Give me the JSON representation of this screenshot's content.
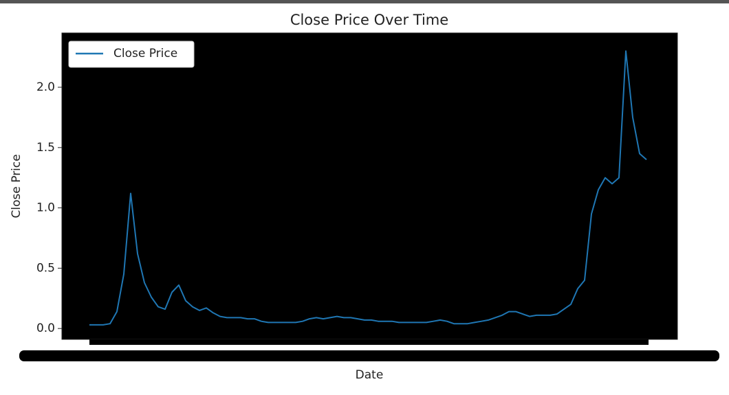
{
  "chart_data": {
    "type": "line",
    "title": "Close Price Over Time",
    "x_label": "Date",
    "y_label": "Close Price",
    "series": [
      {
        "name": "Close Price",
        "color": "#1f77b4",
        "values": [
          0.03,
          0.03,
          0.03,
          0.04,
          0.14,
          0.45,
          1.12,
          0.62,
          0.38,
          0.26,
          0.18,
          0.16,
          0.3,
          0.36,
          0.23,
          0.18,
          0.15,
          0.17,
          0.13,
          0.1,
          0.09,
          0.09,
          0.09,
          0.08,
          0.08,
          0.06,
          0.05,
          0.05,
          0.05,
          0.05,
          0.05,
          0.06,
          0.08,
          0.09,
          0.08,
          0.09,
          0.1,
          0.09,
          0.09,
          0.08,
          0.07,
          0.07,
          0.06,
          0.06,
          0.06,
          0.05,
          0.05,
          0.05,
          0.05,
          0.05,
          0.06,
          0.07,
          0.06,
          0.04,
          0.04,
          0.04,
          0.05,
          0.06,
          0.07,
          0.09,
          0.11,
          0.14,
          0.14,
          0.12,
          0.1,
          0.11,
          0.11,
          0.11,
          0.12,
          0.16,
          0.2,
          0.33,
          0.4,
          0.95,
          1.15,
          1.25,
          1.2,
          1.25,
          2.3,
          1.75,
          1.45,
          1.4
        ]
      }
    ],
    "ylim": [
      -0.09,
      2.45
    ],
    "yticks": [
      {
        "value": 0,
        "label": "0.0"
      },
      0.5,
      {
        "value": 1,
        "label": "1.0"
      },
      1.5,
      {
        "value": 2,
        "label": "2.0"
      }
    ],
    "legend": "upper left",
    "background": "#000000"
  }
}
